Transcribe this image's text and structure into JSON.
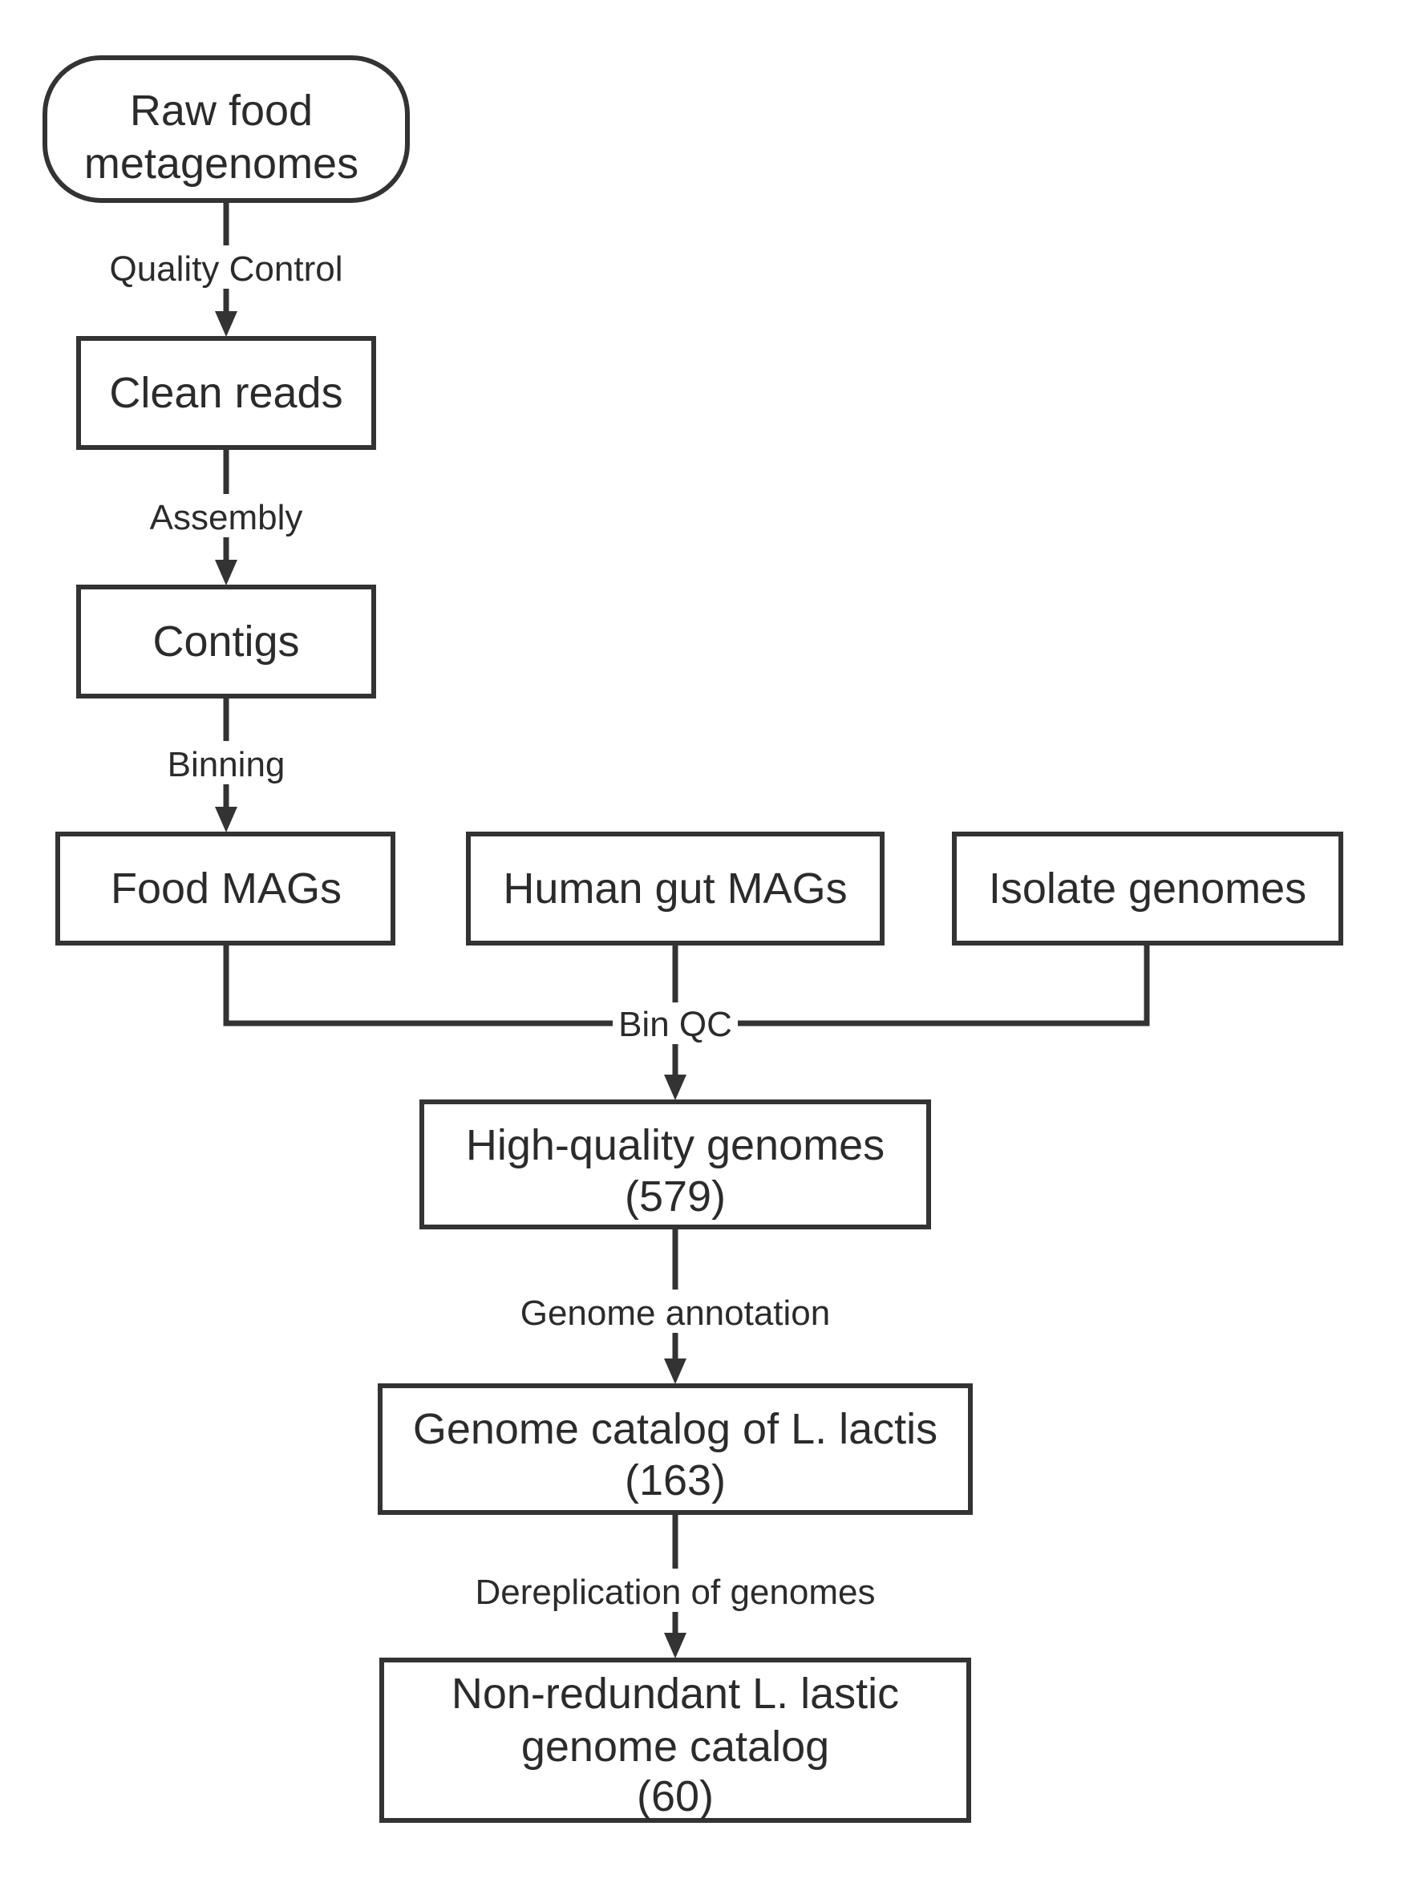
{
  "nodes": {
    "raw_food": [
      "Raw food",
      "metagenomes"
    ],
    "clean_reads": [
      "Clean reads"
    ],
    "contigs": [
      "Contigs"
    ],
    "food_mags": [
      "Food MAGs"
    ],
    "human_gut_mags": [
      "Human gut MAGs"
    ],
    "isolate_genomes": [
      "Isolate genomes"
    ],
    "high_quality": [
      "High-quality genomes",
      "(579)"
    ],
    "genome_catalog": [
      "Genome catalog of L. lactis",
      "(163)"
    ],
    "non_redundant": [
      "Non-redundant L. lastic",
      "genome catalog",
      "(60)"
    ]
  },
  "edges": {
    "quality_control": "Quality Control",
    "assembly": "Assembly",
    "binning": "Binning",
    "bin_qc": "Bin QC",
    "genome_annotation": "Genome annotation",
    "dereplication": "Dereplication of genomes"
  }
}
